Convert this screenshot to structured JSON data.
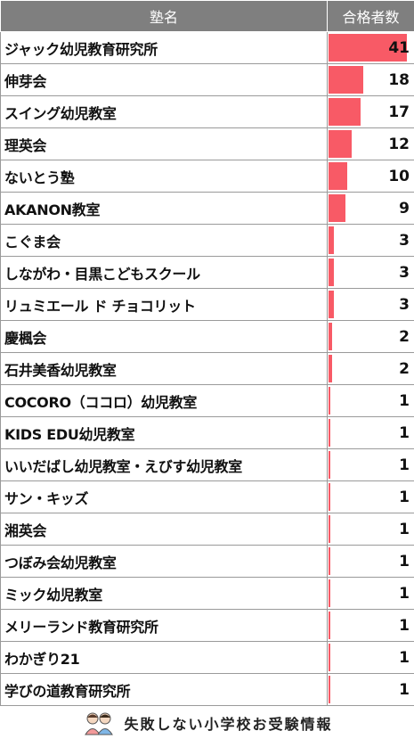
{
  "header": {
    "name_col": "塾名",
    "value_col": "合格者数"
  },
  "footer": {
    "text": "失敗しない小学校お受験情報",
    "logo_icon": "two-children-icon"
  },
  "colors": {
    "bar": "#f85a66",
    "header_bg": "#7f7f7f"
  },
  "chart_data": {
    "type": "table",
    "columns": [
      "塾名",
      "合格者数"
    ],
    "max": 41,
    "rows": [
      {
        "name": "ジャック幼児教育研究所",
        "value": "41"
      },
      {
        "name": "伸芽会",
        "value": "18"
      },
      {
        "name": "スイング幼児教室",
        "value": "17"
      },
      {
        "name": "理英会",
        "value": "12"
      },
      {
        "name": "ないとう塾",
        "value": "10"
      },
      {
        "name": "AKANON教室",
        "value": "9"
      },
      {
        "name": "こぐま会",
        "value": "3"
      },
      {
        "name": "しながわ・目黒こどもスクール",
        "value": "3"
      },
      {
        "name": "リュミエール ド チョコリット",
        "value": "3"
      },
      {
        "name": "慶楓会",
        "value": "2"
      },
      {
        "name": "石井美香幼児教室",
        "value": "2"
      },
      {
        "name": "COCORO（ココロ）幼児教室",
        "value": "1"
      },
      {
        "name": "KIDS EDU幼児教室",
        "value": "1"
      },
      {
        "name": "いいだばし幼児教室・えびす幼児教室",
        "value": "1"
      },
      {
        "name": "サン・キッズ",
        "value": "1"
      },
      {
        "name": "湘英会",
        "value": "1"
      },
      {
        "name": "つぼみ会幼児教室",
        "value": "1"
      },
      {
        "name": "ミック幼児教室",
        "value": "1"
      },
      {
        "name": "メリーランド教育研究所",
        "value": "1"
      },
      {
        "name": "わかぎり21",
        "value": "1"
      },
      {
        "name": "学びの道教育研究所",
        "value": "1"
      }
    ]
  }
}
